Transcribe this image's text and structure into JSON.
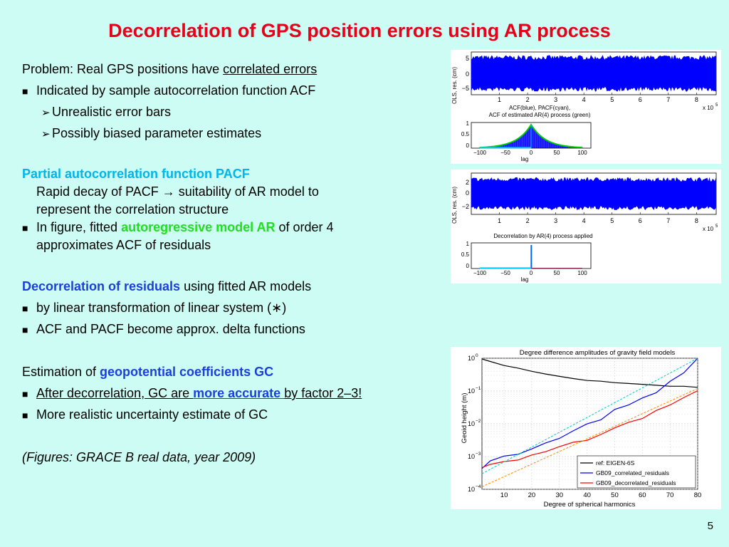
{
  "title": "Decorrelation of GPS position errors using AR process",
  "text": {
    "problem_prefix": "Problem: Real GPS positions have ",
    "problem_link": "correlated errors",
    "b1": "Indicated by sample autocorrelation function ACF",
    "a1": "Unrealistic error bars",
    "a2": "Possibly biased parameter estimates",
    "pacf_heading": "Partial autocorrelation function PACF",
    "pacf_l1": "Rapid decay of PACF → suitability of AR model to",
    "pacf_l2": "represent the correlation structure",
    "b2_pre": "In figure, fitted ",
    "b2_hl": "autoregressive model AR",
    "b2_post": " of order 4",
    "b2_l2": "approximates ACF of residuals",
    "decor_heading": "Decorrelation of residuals",
    "decor_post": " using fitted AR models",
    "b3": "by linear transformation of linear system (∗)",
    "b4": "ACF and PACF become approx. delta functions",
    "est_pre": "Estimation of ",
    "est_hl": "geopotential coefficients GC",
    "b5_pre": "After decorrelation, GC are ",
    "b5_hl": "more accurate ",
    "b5_post": "by factor 2–3!",
    "b6": "More realistic uncertainty estimate of GC",
    "figures_note": "(Figures: GRACE B real data, year 2009)"
  },
  "page_number": "5",
  "colors": {
    "title": "#e8001a",
    "cyan_heading": "#00b5e8",
    "blue_heading": "#1a3fdc",
    "green_highlight": "#22dd22",
    "background": "#ccfcf3"
  },
  "chart_data": [
    {
      "type": "line",
      "id": "residuals_correlated",
      "ylabel": "OLS, res. (cm)",
      "x_ticks": [
        "1",
        "2",
        "3",
        "4",
        "5",
        "6",
        "7",
        "8"
      ],
      "x_multiplier": "x 10",
      "x_exp": "5",
      "y_ticks": [
        "5",
        "0",
        "−5"
      ],
      "ylim": [
        -7,
        7
      ],
      "xlim": [
        0,
        870000
      ],
      "series": [
        {
          "color": "#0000ff",
          "amplitude": 6
        }
      ]
    },
    {
      "type": "bar",
      "id": "acf_correlated",
      "title_lines": [
        "ACF(blue), PACF(cyan),",
        "ACF of estimated AR(4) process (green)"
      ],
      "xlabel": "lag",
      "x_ticks": [
        "−100",
        "−50",
        "0",
        "50",
        "100"
      ],
      "y_ticks": [
        "1",
        "0.5",
        "0"
      ],
      "xlim": [
        -100,
        100
      ],
      "ylim": [
        0,
        1
      ],
      "series": [
        {
          "name": "ACF",
          "color": "#0000ff",
          "shape": "exp-decay",
          "decay_lag": 30
        },
        {
          "name": "PACF",
          "color": "#00ccff",
          "shape": "delta"
        },
        {
          "name": "AR(4) ACF",
          "color": "#00cc00",
          "shape": "exp-decay",
          "decay_lag": 28
        }
      ]
    },
    {
      "type": "line",
      "id": "residuals_decorrelated",
      "ylabel": "OLS, res. (cm)",
      "x_ticks": [
        "1",
        "2",
        "3",
        "4",
        "5",
        "6",
        "7",
        "8"
      ],
      "x_multiplier": "x 10",
      "x_exp": "5",
      "y_ticks": [
        "2",
        "0",
        "−2"
      ],
      "ylim": [
        -3,
        3
      ],
      "xlim": [
        0,
        870000
      ],
      "series": [
        {
          "color": "#0000ff",
          "amplitude": 2.4
        }
      ]
    },
    {
      "type": "bar",
      "id": "acf_decorrelated",
      "title_lines": [
        "Decorrelation by AR(4) process applied"
      ],
      "xlabel": "lag",
      "x_ticks": [
        "−100",
        "−50",
        "0",
        "50",
        "100"
      ],
      "y_ticks": [
        "1",
        "0.5",
        "0"
      ],
      "xlim": [
        -100,
        100
      ],
      "ylim": [
        0,
        1
      ],
      "series": [
        {
          "name": "ACF",
          "color": "#0000ff",
          "shape": "delta"
        },
        {
          "name": "PACF",
          "color": "#00ccff",
          "shape": "delta"
        }
      ]
    },
    {
      "type": "line",
      "id": "degree_difference",
      "title": "Degree difference amplitudes of gravity field models",
      "xlabel": "Degree of spherical harmonics",
      "ylabel": "Geoid height (m)",
      "y_log": true,
      "ylim": [
        0.0001,
        1
      ],
      "xlim": [
        2,
        80
      ],
      "x_ticks": [
        "10",
        "20",
        "30",
        "40",
        "50",
        "60",
        "70",
        "80"
      ],
      "y_ticks": [
        "10^0",
        "10^-1",
        "10^-2",
        "10^-3",
        "10^-4"
      ],
      "grid": true,
      "legend_position": "bottom-right",
      "series": [
        {
          "name": "ref: EIGEN-6S",
          "color": "#000000",
          "x": [
            2,
            5,
            10,
            15,
            20,
            25,
            30,
            35,
            40,
            45,
            50,
            55,
            60,
            65,
            70,
            75,
            80
          ],
          "y": [
            0.95,
            0.8,
            0.6,
            0.5,
            0.4,
            0.33,
            0.28,
            0.24,
            0.21,
            0.2,
            0.18,
            0.17,
            0.16,
            0.15,
            0.14,
            0.14,
            0.13
          ]
        },
        {
          "name": "GB09_correlated_residuals",
          "color": "#0000ff",
          "x": [
            2,
            5,
            10,
            15,
            20,
            25,
            30,
            35,
            40,
            45,
            50,
            55,
            60,
            65,
            70,
            75,
            80
          ],
          "y": [
            0.00045,
            0.0008,
            0.001,
            0.0013,
            0.0018,
            0.0025,
            0.004,
            0.006,
            0.009,
            0.015,
            0.025,
            0.04,
            0.06,
            0.1,
            0.18,
            0.35,
            1.2
          ]
        },
        {
          "name": "GB09_decorrelated_residuals",
          "color": "#ff0000",
          "x": [
            2,
            5,
            10,
            15,
            20,
            25,
            30,
            35,
            40,
            45,
            50,
            55,
            60,
            65,
            70,
            75,
            80
          ],
          "y": [
            0.00045,
            0.0006,
            0.0007,
            0.0008,
            0.001,
            0.0013,
            0.0018,
            0.0025,
            0.0035,
            0.005,
            0.0075,
            0.011,
            0.016,
            0.025,
            0.04,
            0.065,
            0.1
          ]
        },
        {
          "color": "#00cccc",
          "dashed": true,
          "x": [
            2,
            80
          ],
          "y": [
            0.0003,
            1
          ]
        },
        {
          "color": "#ff8800",
          "dashed": true,
          "x": [
            2,
            80
          ],
          "y": [
            0.00012,
            0.12
          ]
        }
      ]
    }
  ]
}
